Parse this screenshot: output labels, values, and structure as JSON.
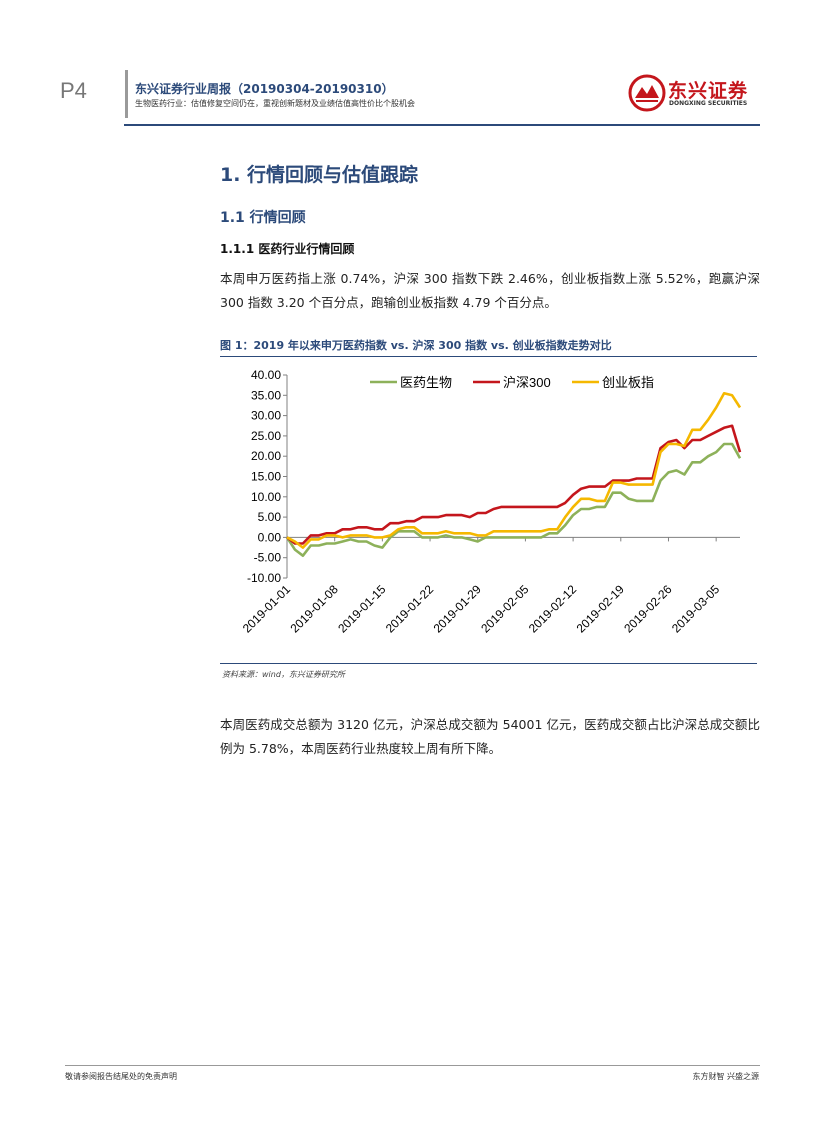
{
  "header": {
    "page_number": "P4",
    "report_title": "东兴证券行业周报（20190304-20190310）",
    "report_subtitle": "生物医药行业：估值修复空间仍在，重视创新题材及业绩估值高性价比个股机会",
    "logo_cn": "东兴证券",
    "logo_en": "DONGXING SECURITIES",
    "brand_color": "#c4161c",
    "title_color": "#2c4a7a"
  },
  "section": {
    "h1": "1. 行情回顾与估值跟踪",
    "h2": "1.1 行情回顾",
    "h3": "1.1.1 医药行业行情回顾",
    "para1": "本周申万医药指上涨 0.74%，沪深 300 指数下跌 2.46%，创业板指数上涨 5.52%，跑赢沪深 300 指数 3.20 个百分点，跑输创业板指数 4.79 个百分点。",
    "para2": "本周医药成交总额为 3120 亿元，沪深总成交额为 54001 亿元，医药成交额占比沪深总成交额比例为 5.78%，本周医药行业热度较上周有所下降。"
  },
  "figure": {
    "title": "图 1：2019 年以来申万医药指数 vs. 沪深 300 指数 vs. 创业板指数走势对比",
    "source": "资料来源：wind，东兴证券研究所"
  },
  "chart_data": {
    "type": "line",
    "title": "",
    "xlabel": "",
    "ylabel": "",
    "ylim": [
      -10,
      40
    ],
    "yticks": [
      "40.00",
      "35.00",
      "30.00",
      "25.00",
      "20.00",
      "15.00",
      "10.00",
      "5.00",
      "0.00",
      "-5.00",
      "-10.00"
    ],
    "ytick_values": [
      40,
      35,
      30,
      25,
      20,
      15,
      10,
      5,
      0,
      -5,
      -10
    ],
    "xticks": [
      "2019-01-01",
      "2019-01-08",
      "2019-01-15",
      "2019-01-22",
      "2019-01-29",
      "2019-02-05",
      "2019-02-12",
      "2019-02-19",
      "2019-02-26",
      "2019-03-05"
    ],
    "legend_position": "top",
    "grid": false,
    "x": [
      "2019-01-01",
      "2019-01-02",
      "2019-01-03",
      "2019-01-04",
      "2019-01-05",
      "2019-01-07",
      "2019-01-08",
      "2019-01-09",
      "2019-01-10",
      "2019-01-11",
      "2019-01-12",
      "2019-01-14",
      "2019-01-15",
      "2019-01-16",
      "2019-01-17",
      "2019-01-18",
      "2019-01-19",
      "2019-01-21",
      "2019-01-22",
      "2019-01-23",
      "2019-01-24",
      "2019-01-25",
      "2019-01-26",
      "2019-01-28",
      "2019-01-29",
      "2019-01-30",
      "2019-01-31",
      "2019-02-01",
      "2019-02-02",
      "2019-02-04",
      "2019-02-05",
      "2019-02-06",
      "2019-02-07",
      "2019-02-08",
      "2019-02-09",
      "2019-02-11",
      "2019-02-12",
      "2019-02-13",
      "2019-02-14",
      "2019-02-15",
      "2019-02-16",
      "2019-02-18",
      "2019-02-19",
      "2019-02-20",
      "2019-02-21",
      "2019-02-22",
      "2019-02-23",
      "2019-02-25",
      "2019-02-26",
      "2019-02-27",
      "2019-02-28",
      "2019-03-01",
      "2019-03-02",
      "2019-03-04",
      "2019-03-05",
      "2019-03-06",
      "2019-03-07",
      "2019-03-08"
    ],
    "series": [
      {
        "name": "医药生物",
        "color": "#8db15a",
        "values": [
          0.0,
          -3.0,
          -4.5,
          -2.0,
          -2.0,
          -1.5,
          -1.5,
          -1.0,
          -0.5,
          -1.0,
          -1.0,
          -2.0,
          -2.5,
          0.0,
          1.5,
          1.5,
          1.5,
          0.0,
          0.0,
          0.0,
          0.5,
          0.0,
          0.0,
          -0.5,
          -1.0,
          0.0,
          0.0,
          0.0,
          0.0,
          0.0,
          0.0,
          0.0,
          0.0,
          1.0,
          1.0,
          3.0,
          5.5,
          7.0,
          7.0,
          7.5,
          7.5,
          11.0,
          11.0,
          9.5,
          9.0,
          9.0,
          9.0,
          14.0,
          16.0,
          16.5,
          15.5,
          18.5,
          18.5,
          20.0,
          21.0,
          23.0,
          23.0,
          19.5
        ]
      },
      {
        "name": "沪深300",
        "color": "#c4161c",
        "values": [
          0.0,
          -1.5,
          -1.5,
          0.5,
          0.5,
          1.0,
          1.0,
          2.0,
          2.0,
          2.5,
          2.5,
          2.0,
          2.0,
          3.5,
          3.5,
          4.0,
          4.0,
          5.0,
          5.0,
          5.0,
          5.5,
          5.5,
          5.5,
          5.0,
          6.0,
          6.0,
          7.0,
          7.5,
          7.5,
          7.5,
          7.5,
          7.5,
          7.5,
          7.5,
          7.5,
          8.5,
          10.5,
          12.0,
          12.5,
          12.5,
          12.5,
          14.0,
          14.0,
          14.0,
          14.5,
          14.5,
          14.5,
          22.0,
          23.5,
          24.0,
          22.0,
          24.0,
          24.0,
          25.0,
          26.0,
          27.0,
          27.5,
          21.0
        ]
      },
      {
        "name": "创业板指",
        "color": "#f5b800",
        "values": [
          0.0,
          -1.0,
          -2.5,
          -0.5,
          -0.5,
          0.5,
          0.5,
          0.0,
          0.5,
          0.5,
          0.5,
          0.0,
          0.0,
          0.5,
          2.0,
          2.5,
          2.5,
          1.0,
          1.0,
          1.0,
          1.5,
          1.0,
          1.0,
          1.0,
          0.5,
          0.5,
          1.5,
          1.5,
          1.5,
          1.5,
          1.5,
          1.5,
          1.5,
          2.0,
          2.0,
          5.0,
          7.5,
          9.5,
          9.5,
          9.0,
          9.0,
          13.5,
          13.5,
          13.0,
          13.0,
          13.0,
          13.0,
          21.0,
          23.0,
          23.0,
          22.5,
          26.5,
          26.5,
          29.0,
          32.0,
          35.5,
          35.0,
          32.0
        ]
      }
    ]
  },
  "footer": {
    "left": "敬请参阅报告结尾处的免责声明",
    "right": "东方财智 兴盛之源"
  }
}
